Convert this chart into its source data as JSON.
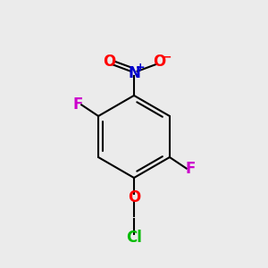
{
  "bg_color": "#ebebeb",
  "ring_color": "#000000",
  "line_width": 1.5,
  "atom_colors": {
    "N": "#0000cc",
    "O": "#ff0000",
    "F": "#cc00cc",
    "Cl": "#00bb00",
    "C": "#000000"
  },
  "font_size_main": 12,
  "font_size_charge": 9
}
